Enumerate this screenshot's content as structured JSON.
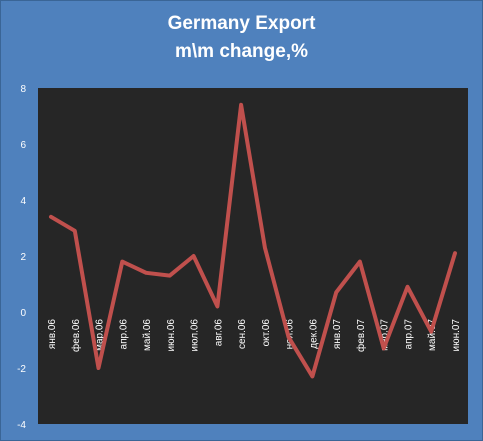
{
  "chart_data": {
    "type": "line",
    "title_line1": "Germany Export",
    "title_line2": "m\\m change,%",
    "categories": [
      "янв.06",
      "фев.06",
      "мар.06",
      "апр.06",
      "май.06",
      "июн.06",
      "июл.06",
      "авг.06",
      "сен.06",
      "окт.06",
      "ноя.06",
      "дек.06",
      "янв.07",
      "фев.07",
      "мар.07",
      "апр.07",
      "май.07",
      "июн.07"
    ],
    "series": [
      {
        "values": [
          3.4,
          2.9,
          -2.0,
          1.8,
          1.4,
          1.3,
          2.0,
          0.2,
          7.4,
          2.3,
          -0.9,
          -2.3,
          0.7,
          1.8,
          -1.3,
          0.9,
          -0.7,
          2.1
        ]
      }
    ],
    "ylim": [
      -4,
      8
    ],
    "yticks": [
      "-4",
      "-2",
      "0",
      "2",
      "4",
      "6",
      "8"
    ],
    "grid": false,
    "colors": {
      "line": "#c0504d",
      "plot_background": "#262626",
      "chart_background": "#4f81bd",
      "text": "#ffffff"
    }
  }
}
